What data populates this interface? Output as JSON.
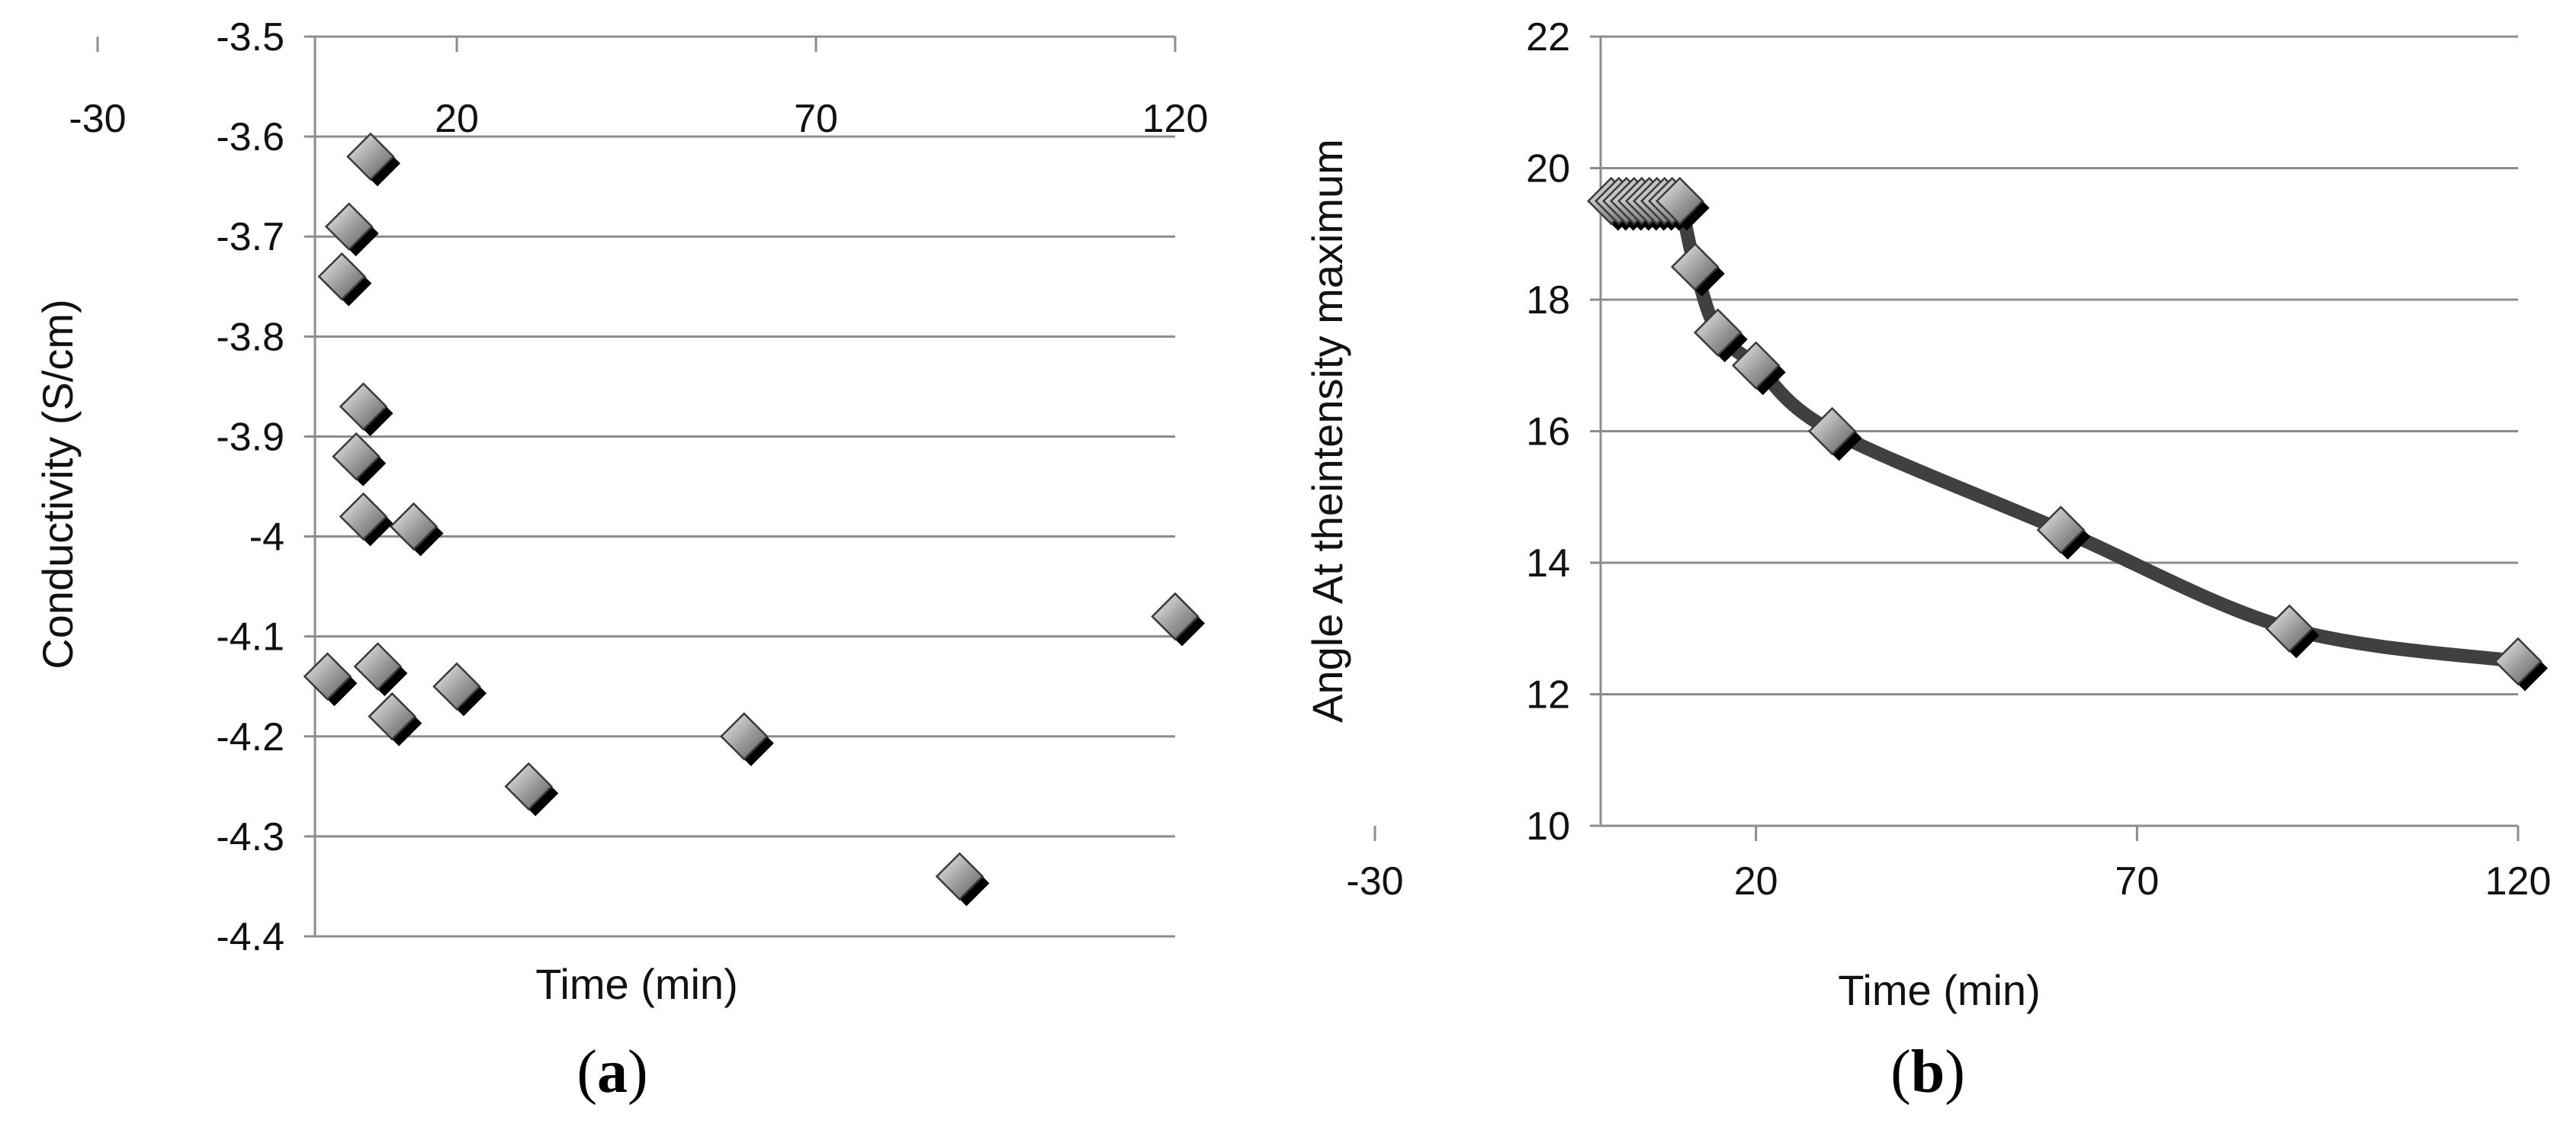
{
  "chart_data": [
    {
      "panel": "(a)",
      "panel_letter": "a",
      "type": "scatter",
      "title": "",
      "xlabel": "Time (min)",
      "ylabel": "Conductivity (S/cm)",
      "xlim": [
        -30,
        120
      ],
      "ylim": [
        -4.4,
        -3.5
      ],
      "x_ticks": [
        -30,
        20,
        70,
        120
      ],
      "y_ticks": [
        -3.5,
        -3.6,
        -3.7,
        -3.8,
        -3.9,
        -4,
        -4.1,
        -4.2,
        -4.3,
        -4.4
      ],
      "x_tick_labels": [
        "-30",
        "20",
        "70",
        "120"
      ],
      "y_tick_labels": [
        "-3.5",
        "-3.6",
        "-3.7",
        "-3.8",
        "-3.9",
        "-4",
        "-4.1",
        "-4.2",
        "-4.3",
        "-4.4"
      ],
      "grid": "horizontal",
      "marker": "diamond",
      "points": [
        {
          "x": 8,
          "y": -3.62
        },
        {
          "x": 5,
          "y": -3.69
        },
        {
          "x": 4,
          "y": -3.74
        },
        {
          "x": 7,
          "y": -3.87
        },
        {
          "x": 6,
          "y": -3.92
        },
        {
          "x": 7,
          "y": -3.98
        },
        {
          "x": 14,
          "y": -3.99
        },
        {
          "x": 2,
          "y": -4.14
        },
        {
          "x": 9,
          "y": -4.13
        },
        {
          "x": 11,
          "y": -4.18
        },
        {
          "x": 20,
          "y": -4.15
        },
        {
          "x": 30,
          "y": -4.25
        },
        {
          "x": 60,
          "y": -4.2
        },
        {
          "x": 90,
          "y": -4.34
        },
        {
          "x": 120,
          "y": -4.08
        }
      ]
    },
    {
      "panel": "(b)",
      "panel_letter": "b",
      "type": "line",
      "title": "",
      "xlabel": "Time (min)",
      "ylabel": "Angle At theintensity maximum",
      "xlim": [
        -30,
        120
      ],
      "ylim": [
        10,
        22
      ],
      "x_ticks": [
        -30,
        20,
        70,
        120
      ],
      "y_ticks": [
        10,
        12,
        14,
        16,
        18,
        20,
        22
      ],
      "x_tick_labels": [
        "-30",
        "20",
        "70",
        "120"
      ],
      "y_tick_labels": [
        "10",
        "12",
        "14",
        "16",
        "18",
        "20",
        "22"
      ],
      "grid": "horizontal",
      "marker": "diamond",
      "line_color": "#404040",
      "points": [
        {
          "x": 1,
          "y": 19.5
        },
        {
          "x": 2,
          "y": 19.5
        },
        {
          "x": 3,
          "y": 19.5
        },
        {
          "x": 4,
          "y": 19.5
        },
        {
          "x": 5,
          "y": 19.5
        },
        {
          "x": 6,
          "y": 19.5
        },
        {
          "x": 7,
          "y": 19.5
        },
        {
          "x": 8,
          "y": 19.5
        },
        {
          "x": 9,
          "y": 19.5
        },
        {
          "x": 10,
          "y": 19.5
        },
        {
          "x": 12,
          "y": 18.5
        },
        {
          "x": 15,
          "y": 17.5
        },
        {
          "x": 20,
          "y": 17
        },
        {
          "x": 30,
          "y": 16
        },
        {
          "x": 60,
          "y": 14.5
        },
        {
          "x": 90,
          "y": 13
        },
        {
          "x": 120,
          "y": 12.5
        }
      ]
    }
  ]
}
